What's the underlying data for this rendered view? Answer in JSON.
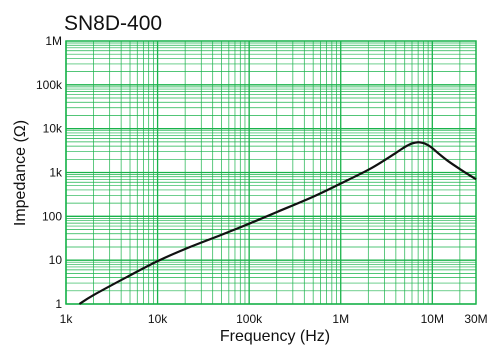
{
  "chart_data": {
    "type": "line",
    "title": "SN8D-400",
    "xlabel": "Frequency (Hz)",
    "ylabel": "Impedance (Ω)",
    "x_scale": "log",
    "y_scale": "log",
    "xlim": [
      1000,
      30000000
    ],
    "ylim": [
      1,
      1000000
    ],
    "grid": true,
    "x_tick_labels": [
      "1k",
      "10k",
      "100k",
      "1M",
      "10M",
      "30M"
    ],
    "y_tick_labels": [
      "1M",
      "100k",
      "10k",
      "1k",
      "100",
      "10",
      "1"
    ],
    "series": [
      {
        "x": [
          1400,
          2000,
          5000,
          10000,
          20000,
          50000,
          100000,
          200000,
          500000,
          1000000,
          2000000,
          3000000,
          4000000,
          5000000,
          6000000,
          7000000,
          8000000,
          9000000,
          10000000,
          12000000,
          15000000,
          20000000,
          30000000
        ],
        "y": [
          1,
          1.6,
          4.5,
          9.5,
          18,
          38,
          68,
          125,
          280,
          560,
          1150,
          1900,
          2800,
          3800,
          4600,
          4900,
          4700,
          4200,
          3600,
          2600,
          1800,
          1200,
          700
        ]
      }
    ],
    "colors": {
      "grid": "#19b24a",
      "line": "#111111",
      "frame": "#19b24a"
    }
  }
}
